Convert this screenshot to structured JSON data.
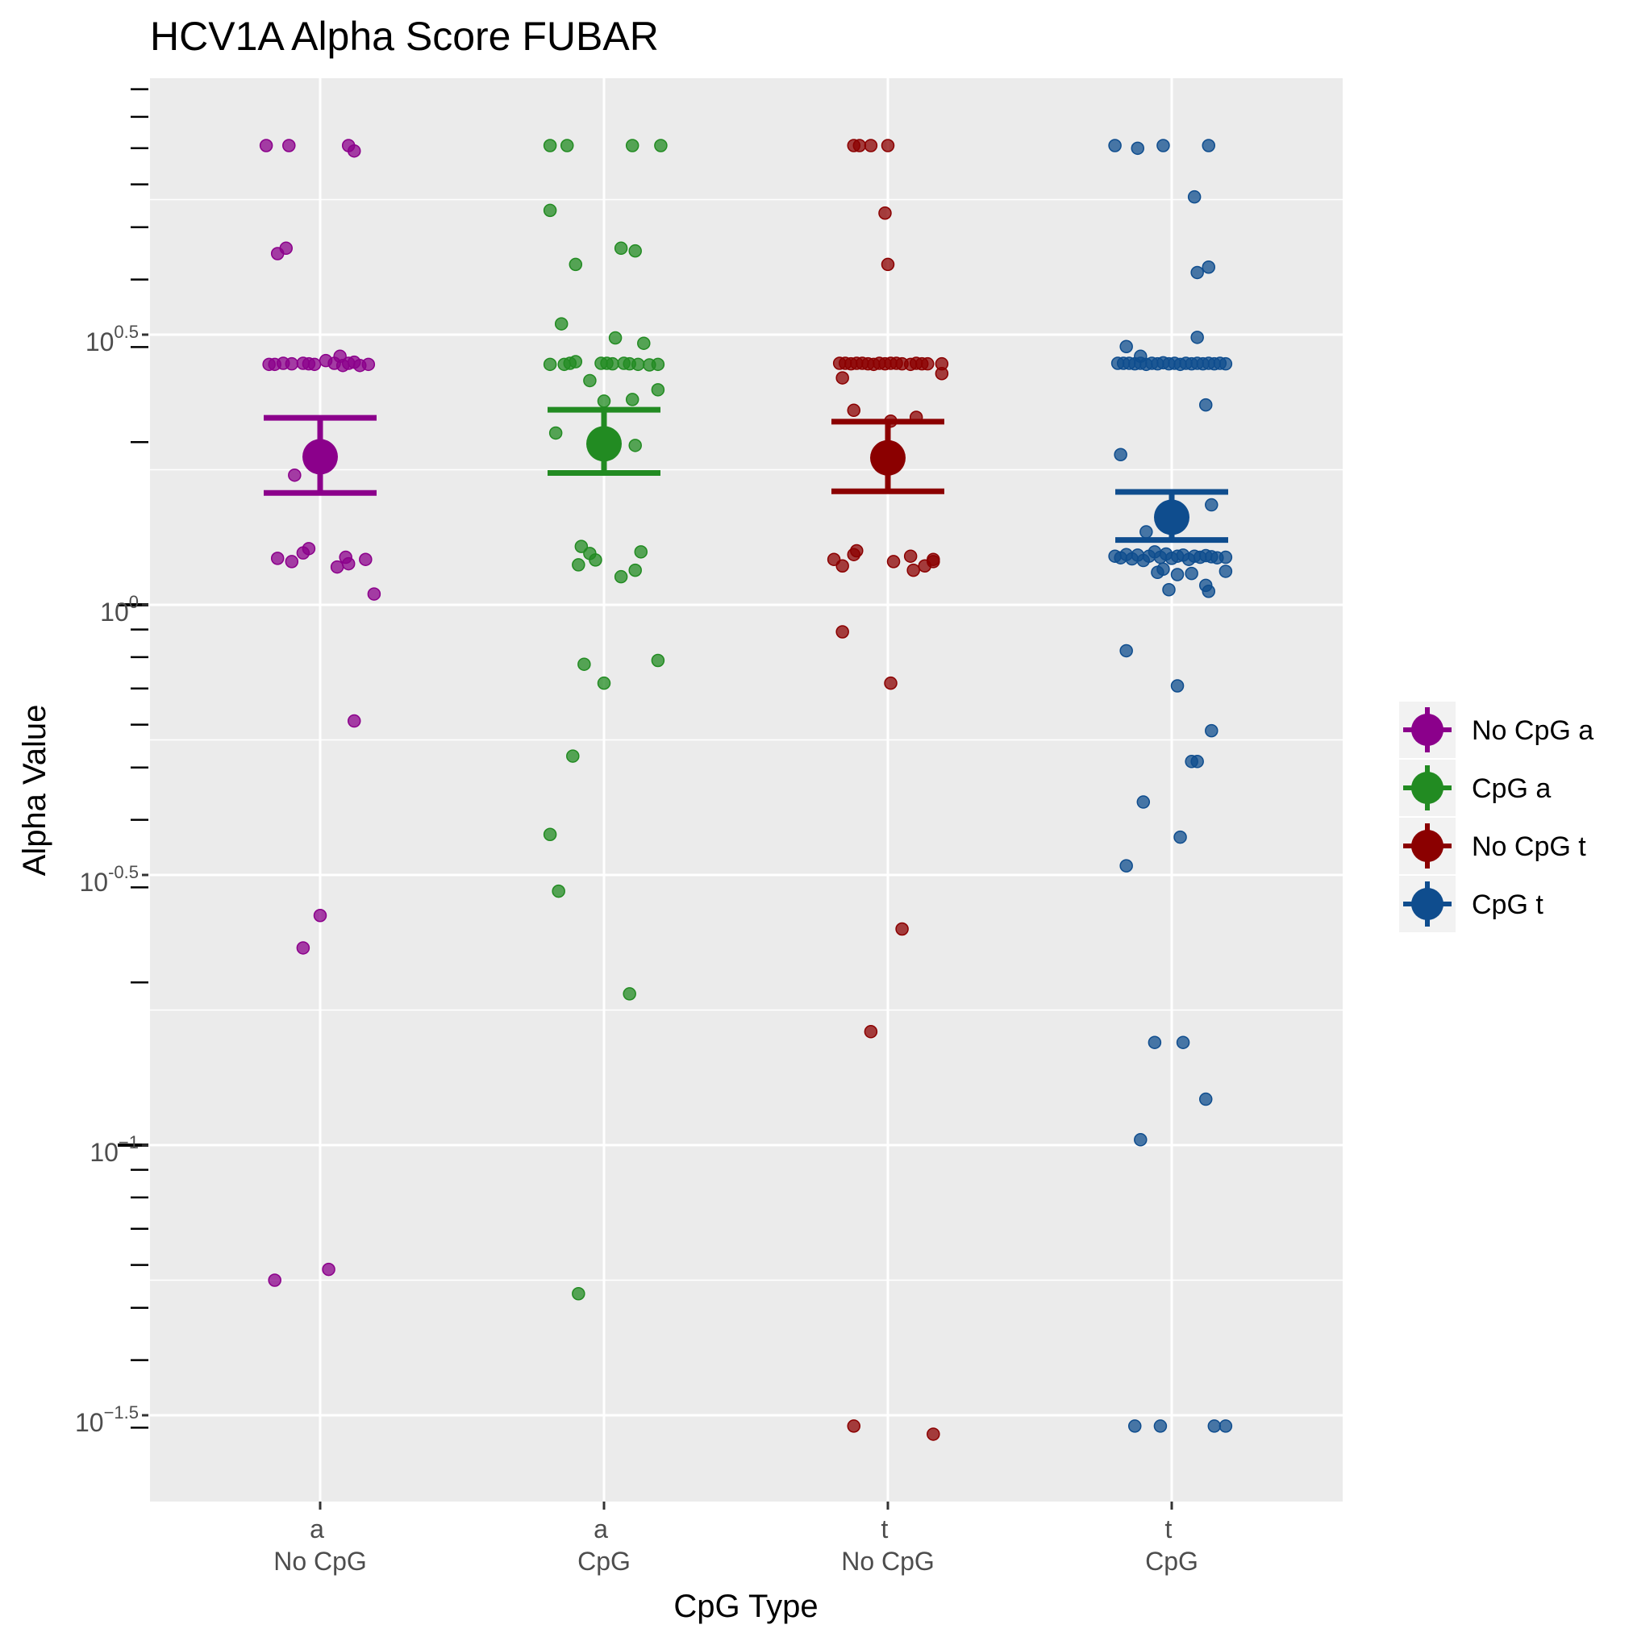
{
  "chart_data": {
    "type": "scatter",
    "title": "HCV1A Alpha Score FUBAR",
    "xlabel": "CpG Type",
    "ylabel": "Alpha Value",
    "y_scale": "log10",
    "ylim": [
      -1.63,
      1.0
    ],
    "categories": [
      {
        "top": "a",
        "bottom": "No CpG"
      },
      {
        "top": "a",
        "bottom": "CpG"
      },
      {
        "top": "t",
        "bottom": "No CpG"
      },
      {
        "top": "t",
        "bottom": "CpG"
      }
    ],
    "y_ticks": [
      {
        "log": 0.5,
        "base": "10",
        "exp": "0.5"
      },
      {
        "log": 0,
        "base": "10",
        "exp": "0"
      },
      {
        "log": -0.5,
        "base": "10",
        "exp": "-0.5"
      },
      {
        "log": -1,
        "base": "10",
        "exp": "−1"
      },
      {
        "log": -1.5,
        "base": "10",
        "exp": "−1.5"
      }
    ],
    "grid": true,
    "legend_position": "right",
    "series": [
      {
        "name": "No CpG a",
        "color": "#8B008B",
        "mean": 0.274,
        "ci": [
          0.207,
          0.346
        ],
        "points": [
          [
            -0.19,
            0.85
          ],
          [
            -0.11,
            0.85
          ],
          [
            0.1,
            0.85
          ],
          [
            0.12,
            0.84
          ],
          [
            -0.15,
            0.65
          ],
          [
            -0.12,
            0.66
          ],
          [
            -0.18,
            0.445
          ],
          [
            -0.16,
            0.445
          ],
          [
            -0.13,
            0.447
          ],
          [
            -0.1,
            0.446
          ],
          [
            -0.06,
            0.447
          ],
          [
            -0.04,
            0.446
          ],
          [
            -0.02,
            0.445
          ],
          [
            0.02,
            0.452
          ],
          [
            0.05,
            0.447
          ],
          [
            0.07,
            0.46
          ],
          [
            0.08,
            0.443
          ],
          [
            0.1,
            0.447
          ],
          [
            0.12,
            0.449
          ],
          [
            0.14,
            0.443
          ],
          [
            0.17,
            0.445
          ],
          [
            -0.09,
            0.24
          ],
          [
            -0.15,
            0.086
          ],
          [
            -0.1,
            0.08
          ],
          [
            -0.06,
            0.096
          ],
          [
            -0.04,
            0.104
          ],
          [
            0.06,
            0.07
          ],
          [
            0.09,
            0.088
          ],
          [
            0.1,
            0.076
          ],
          [
            0.16,
            0.084
          ],
          [
            0.19,
            0.02
          ],
          [
            0.12,
            -0.215
          ],
          [
            0.0,
            -0.575
          ],
          [
            -0.06,
            -0.635
          ],
          [
            -0.16,
            -1.25
          ],
          [
            0.03,
            -1.23
          ]
        ]
      },
      {
        "name": "CpG a",
        "color": "#228B22",
        "mean": 0.298,
        "ci": [
          0.244,
          0.361
        ],
        "points": [
          [
            -0.19,
            0.85
          ],
          [
            -0.13,
            0.85
          ],
          [
            0.1,
            0.85
          ],
          [
            0.2,
            0.85
          ],
          [
            -0.19,
            0.73
          ],
          [
            -0.1,
            0.63
          ],
          [
            0.06,
            0.66
          ],
          [
            0.11,
            0.655
          ],
          [
            -0.15,
            0.52
          ],
          [
            0.04,
            0.494
          ],
          [
            0.14,
            0.484
          ],
          [
            -0.19,
            0.445
          ],
          [
            -0.14,
            0.445
          ],
          [
            -0.12,
            0.447
          ],
          [
            -0.1,
            0.45
          ],
          [
            -0.01,
            0.447
          ],
          [
            0.01,
            0.447
          ],
          [
            0.03,
            0.446
          ],
          [
            0.07,
            0.447
          ],
          [
            0.09,
            0.446
          ],
          [
            0.12,
            0.445
          ],
          [
            0.16,
            0.444
          ],
          [
            0.19,
            0.445
          ],
          [
            -0.05,
            0.415
          ],
          [
            0.19,
            0.398
          ],
          [
            0.0,
            0.377
          ],
          [
            0.1,
            0.38
          ],
          [
            -0.17,
            0.318
          ],
          [
            0.11,
            0.295
          ],
          [
            -0.08,
            0.108
          ],
          [
            -0.05,
            0.095
          ],
          [
            0.13,
            0.098
          ],
          [
            -0.09,
            0.074
          ],
          [
            -0.03,
            0.083
          ],
          [
            0.06,
            0.052
          ],
          [
            0.11,
            0.064
          ],
          [
            -0.07,
            -0.11
          ],
          [
            0.19,
            -0.103
          ],
          [
            0.0,
            -0.145
          ],
          [
            -0.11,
            -0.28
          ],
          [
            -0.19,
            -0.425
          ],
          [
            -0.16,
            -0.53
          ],
          [
            0.09,
            -0.72
          ],
          [
            -0.09,
            -1.275
          ]
        ]
      },
      {
        "name": "No CpG t",
        "color": "#8B0000",
        "mean": 0.272,
        "ci": [
          0.21,
          0.339
        ],
        "points": [
          [
            -0.12,
            0.85
          ],
          [
            -0.1,
            0.85
          ],
          [
            -0.06,
            0.85
          ],
          [
            0.0,
            0.85
          ],
          [
            -0.01,
            0.725
          ],
          [
            0.0,
            0.63
          ],
          [
            -0.17,
            0.447
          ],
          [
            -0.15,
            0.447
          ],
          [
            -0.13,
            0.446
          ],
          [
            -0.11,
            0.447
          ],
          [
            -0.09,
            0.447
          ],
          [
            -0.07,
            0.446
          ],
          [
            -0.05,
            0.445
          ],
          [
            -0.03,
            0.447
          ],
          [
            -0.01,
            0.446
          ],
          [
            0.01,
            0.447
          ],
          [
            0.03,
            0.447
          ],
          [
            0.05,
            0.446
          ],
          [
            0.08,
            0.445
          ],
          [
            0.1,
            0.447
          ],
          [
            0.12,
            0.446
          ],
          [
            0.14,
            0.446
          ],
          [
            0.19,
            0.446
          ],
          [
            -0.16,
            0.42
          ],
          [
            0.19,
            0.428
          ],
          [
            -0.12,
            0.36
          ],
          [
            0.01,
            0.34
          ],
          [
            0.1,
            0.347
          ],
          [
            -0.19,
            0.084
          ],
          [
            -0.16,
            0.072
          ],
          [
            -0.12,
            0.093
          ],
          [
            -0.11,
            0.1
          ],
          [
            0.02,
            0.08
          ],
          [
            0.08,
            0.09
          ],
          [
            0.09,
            0.064
          ],
          [
            0.13,
            0.072
          ],
          [
            0.16,
            0.084
          ],
          [
            0.16,
            0.08
          ],
          [
            -0.16,
            -0.05
          ],
          [
            0.01,
            -0.145
          ],
          [
            0.05,
            -0.6
          ],
          [
            -0.06,
            -0.79
          ],
          [
            -0.12,
            -1.52
          ],
          [
            0.16,
            -1.535
          ]
        ]
      },
      {
        "name": "CpG t",
        "color": "#0F4D8E",
        "mean": 0.162,
        "ci": [
          0.12,
          0.209
        ],
        "points": [
          [
            -0.2,
            0.85
          ],
          [
            -0.12,
            0.845
          ],
          [
            -0.03,
            0.85
          ],
          [
            0.13,
            0.85
          ],
          [
            0.08,
            0.755
          ],
          [
            0.09,
            0.615
          ],
          [
            0.13,
            0.625
          ],
          [
            -0.16,
            0.478
          ],
          [
            -0.11,
            0.46
          ],
          [
            0.09,
            0.495
          ],
          [
            -0.19,
            0.447
          ],
          [
            -0.17,
            0.447
          ],
          [
            -0.15,
            0.447
          ],
          [
            -0.13,
            0.446
          ],
          [
            -0.11,
            0.447
          ],
          [
            -0.09,
            0.445
          ],
          [
            -0.07,
            0.447
          ],
          [
            -0.05,
            0.446
          ],
          [
            -0.03,
            0.448
          ],
          [
            -0.01,
            0.446
          ],
          [
            0.01,
            0.447
          ],
          [
            0.03,
            0.445
          ],
          [
            0.05,
            0.447
          ],
          [
            0.07,
            0.446
          ],
          [
            0.09,
            0.447
          ],
          [
            0.11,
            0.446
          ],
          [
            0.13,
            0.447
          ],
          [
            0.15,
            0.446
          ],
          [
            0.17,
            0.447
          ],
          [
            0.19,
            0.446
          ],
          [
            0.12,
            0.37
          ],
          [
            -0.18,
            0.278
          ],
          [
            0.14,
            0.185
          ],
          [
            -0.09,
            0.135
          ],
          [
            -0.2,
            0.09
          ],
          [
            -0.18,
            0.087
          ],
          [
            -0.16,
            0.093
          ],
          [
            -0.14,
            0.085
          ],
          [
            -0.12,
            0.092
          ],
          [
            -0.1,
            0.082
          ],
          [
            -0.08,
            0.09
          ],
          [
            -0.06,
            0.098
          ],
          [
            -0.04,
            0.088
          ],
          [
            -0.02,
            0.094
          ],
          [
            0.0,
            0.086
          ],
          [
            0.02,
            0.09
          ],
          [
            0.04,
            0.092
          ],
          [
            0.06,
            0.084
          ],
          [
            0.08,
            0.09
          ],
          [
            0.1,
            0.088
          ],
          [
            0.12,
            0.091
          ],
          [
            0.14,
            0.089
          ],
          [
            0.16,
            0.087
          ],
          [
            0.19,
            0.088
          ],
          [
            -0.05,
            0.06
          ],
          [
            -0.03,
            0.066
          ],
          [
            0.02,
            0.056
          ],
          [
            0.07,
            0.058
          ],
          [
            0.19,
            0.062
          ],
          [
            -0.01,
            0.028
          ],
          [
            0.12,
            0.036
          ],
          [
            0.13,
            0.025
          ],
          [
            -0.16,
            -0.085
          ],
          [
            0.02,
            -0.15
          ],
          [
            0.14,
            -0.233
          ],
          [
            0.07,
            -0.29
          ],
          [
            0.09,
            -0.29
          ],
          [
            -0.1,
            -0.365
          ],
          [
            0.03,
            -0.43
          ],
          [
            -0.16,
            -0.483
          ],
          [
            -0.06,
            -0.81
          ],
          [
            0.04,
            -0.81
          ],
          [
            0.12,
            -0.915
          ],
          [
            -0.11,
            -0.99
          ],
          [
            -0.13,
            -1.52
          ],
          [
            -0.04,
            -1.52
          ],
          [
            0.15,
            -1.52
          ],
          [
            0.19,
            -1.52
          ]
        ]
      }
    ]
  }
}
